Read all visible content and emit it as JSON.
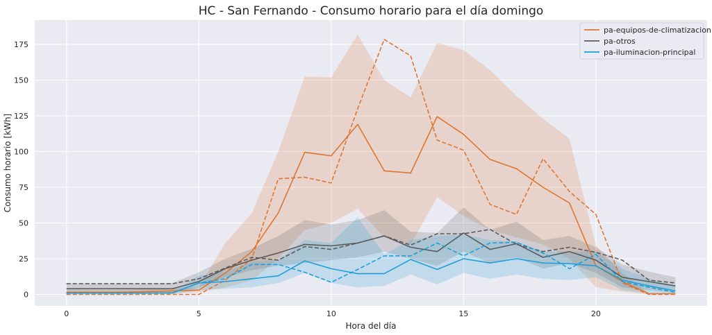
{
  "chart_data": {
    "type": "line",
    "title": "HC - San Fernando - Consumo horario para el día domingo",
    "xlabel": "Hora del día",
    "ylabel": "Consumo horario [kWh]",
    "xlim": [
      -1.2,
      24.2
    ],
    "ylim": [
      -8,
      192
    ],
    "xticks": [
      0,
      5,
      10,
      15,
      20
    ],
    "yticks": [
      0,
      25,
      50,
      75,
      100,
      125,
      150,
      175
    ],
    "grid": true,
    "legend_position": "top-right",
    "background_color": "#eaeaf2",
    "x": [
      0,
      1,
      2,
      3,
      4,
      5,
      6,
      7,
      8,
      9,
      10,
      11,
      12,
      13,
      14,
      15,
      16,
      17,
      18,
      19,
      20,
      21,
      22,
      23
    ],
    "series": [
      {
        "name": "pa-equipos-de-climatizacion",
        "color": "#dd7631",
        "mean": [
          1.5,
          1.5,
          1.5,
          2.0,
          2.5,
          3.0,
          15.0,
          30.0,
          57.0,
          99.5,
          97.0,
          119.0,
          86.5,
          85.0,
          124.5,
          112.0,
          94.5,
          88.0,
          75.0,
          64.0,
          20.0,
          9.0,
          0.5,
          0.5
        ],
        "lower": [
          0,
          0,
          0,
          0.5,
          1.0,
          1.5,
          5.0,
          10.0,
          25.0,
          45.0,
          50.0,
          60.0,
          40.0,
          35.0,
          68.0,
          55.0,
          45.0,
          40.0,
          35.0,
          25.0,
          5.0,
          2.0,
          0,
          0
        ],
        "upper": [
          3.0,
          3.0,
          3.0,
          3.5,
          4.0,
          5.0,
          36.0,
          57.0,
          100.0,
          152.5,
          152.0,
          182.0,
          150.0,
          138.0,
          176.0,
          171.0,
          157.0,
          139.0,
          123.0,
          109.0,
          34.0,
          15.0,
          1.0,
          1.0
        ],
        "dashed": [
          0,
          0,
          0,
          0,
          0,
          0,
          10.0,
          25.0,
          81.0,
          82.0,
          78.0,
          130.0,
          178.5,
          167.0,
          108.0,
          101.0,
          63.0,
          56.0,
          95.0,
          72.0,
          56.0,
          8.0,
          0,
          0
        ]
      },
      {
        "name": "pa-otros",
        "color": "#5a5a5a",
        "mean": [
          4.0,
          4.0,
          4.0,
          4.0,
          4.0,
          9.0,
          18.0,
          24.0,
          29.0,
          35.0,
          34.0,
          36.0,
          41.0,
          33.0,
          30.0,
          43.0,
          31.5,
          35.5,
          26.0,
          30.0,
          24.0,
          12.0,
          9.0,
          6.0
        ],
        "lower": [
          1.0,
          1.0,
          1.0,
          1.0,
          1.0,
          5.0,
          12.0,
          17.0,
          20.0,
          22.0,
          24.0,
          26.0,
          30.0,
          25.0,
          20.0,
          30.0,
          22.0,
          26.0,
          18.0,
          22.0,
          15.0,
          5.0,
          3.0,
          1.0
        ],
        "upper": [
          7.5,
          7.5,
          7.5,
          7.5,
          8.0,
          15.5,
          25.0,
          32.0,
          41.0,
          52.0,
          49.0,
          52.0,
          59.0,
          44.0,
          43.0,
          61.0,
          45.0,
          51.0,
          38.0,
          41.0,
          33.0,
          21.0,
          16.0,
          12.0
        ],
        "dashed": [
          7.5,
          7.5,
          7.5,
          7.5,
          7.5,
          11.0,
          18.5,
          26.0,
          24.0,
          33.5,
          31.5,
          36.0,
          41.0,
          34.5,
          42.5,
          42.5,
          45.5,
          35.0,
          30.0,
          33.0,
          29.5,
          24.0,
          10.0,
          8.0
        ]
      },
      {
        "name": "pa-iluminacion-principal",
        "color": "#1f9ed8",
        "mean": [
          1.0,
          1.0,
          1.0,
          1.0,
          1.0,
          8.0,
          9.0,
          11.0,
          13.0,
          23.5,
          18.0,
          14.5,
          14.5,
          24.5,
          17.5,
          25.0,
          22.0,
          25.0,
          22.0,
          21.5,
          20.0,
          10.0,
          6.0,
          2.5
        ],
        "lower": [
          0,
          0,
          0,
          0,
          0,
          3.0,
          4.0,
          5.0,
          8.0,
          15.0,
          8.0,
          5.0,
          6.0,
          14.0,
          7.0,
          15.0,
          11.0,
          14.0,
          11.0,
          10.0,
          12.0,
          3.0,
          1.0,
          0
        ],
        "upper": [
          2.0,
          2.0,
          2.0,
          2.0,
          2.0,
          13.0,
          16.0,
          23.0,
          24.0,
          38.0,
          36.0,
          54.0,
          28.0,
          38.0,
          41.0,
          42.0,
          38.0,
          37.0,
          30.0,
          30.0,
          30.0,
          18.0,
          11.0,
          6.0
        ],
        "dashed": [
          1.0,
          1.0,
          1.0,
          1.0,
          1.0,
          8.0,
          11.0,
          21.0,
          21.0,
          15.5,
          8.5,
          17.5,
          27.0,
          27.0,
          36.0,
          27.0,
          36.0,
          36.5,
          29.0,
          18.0,
          28.0,
          9.0,
          5.0,
          1.5
        ]
      }
    ]
  }
}
